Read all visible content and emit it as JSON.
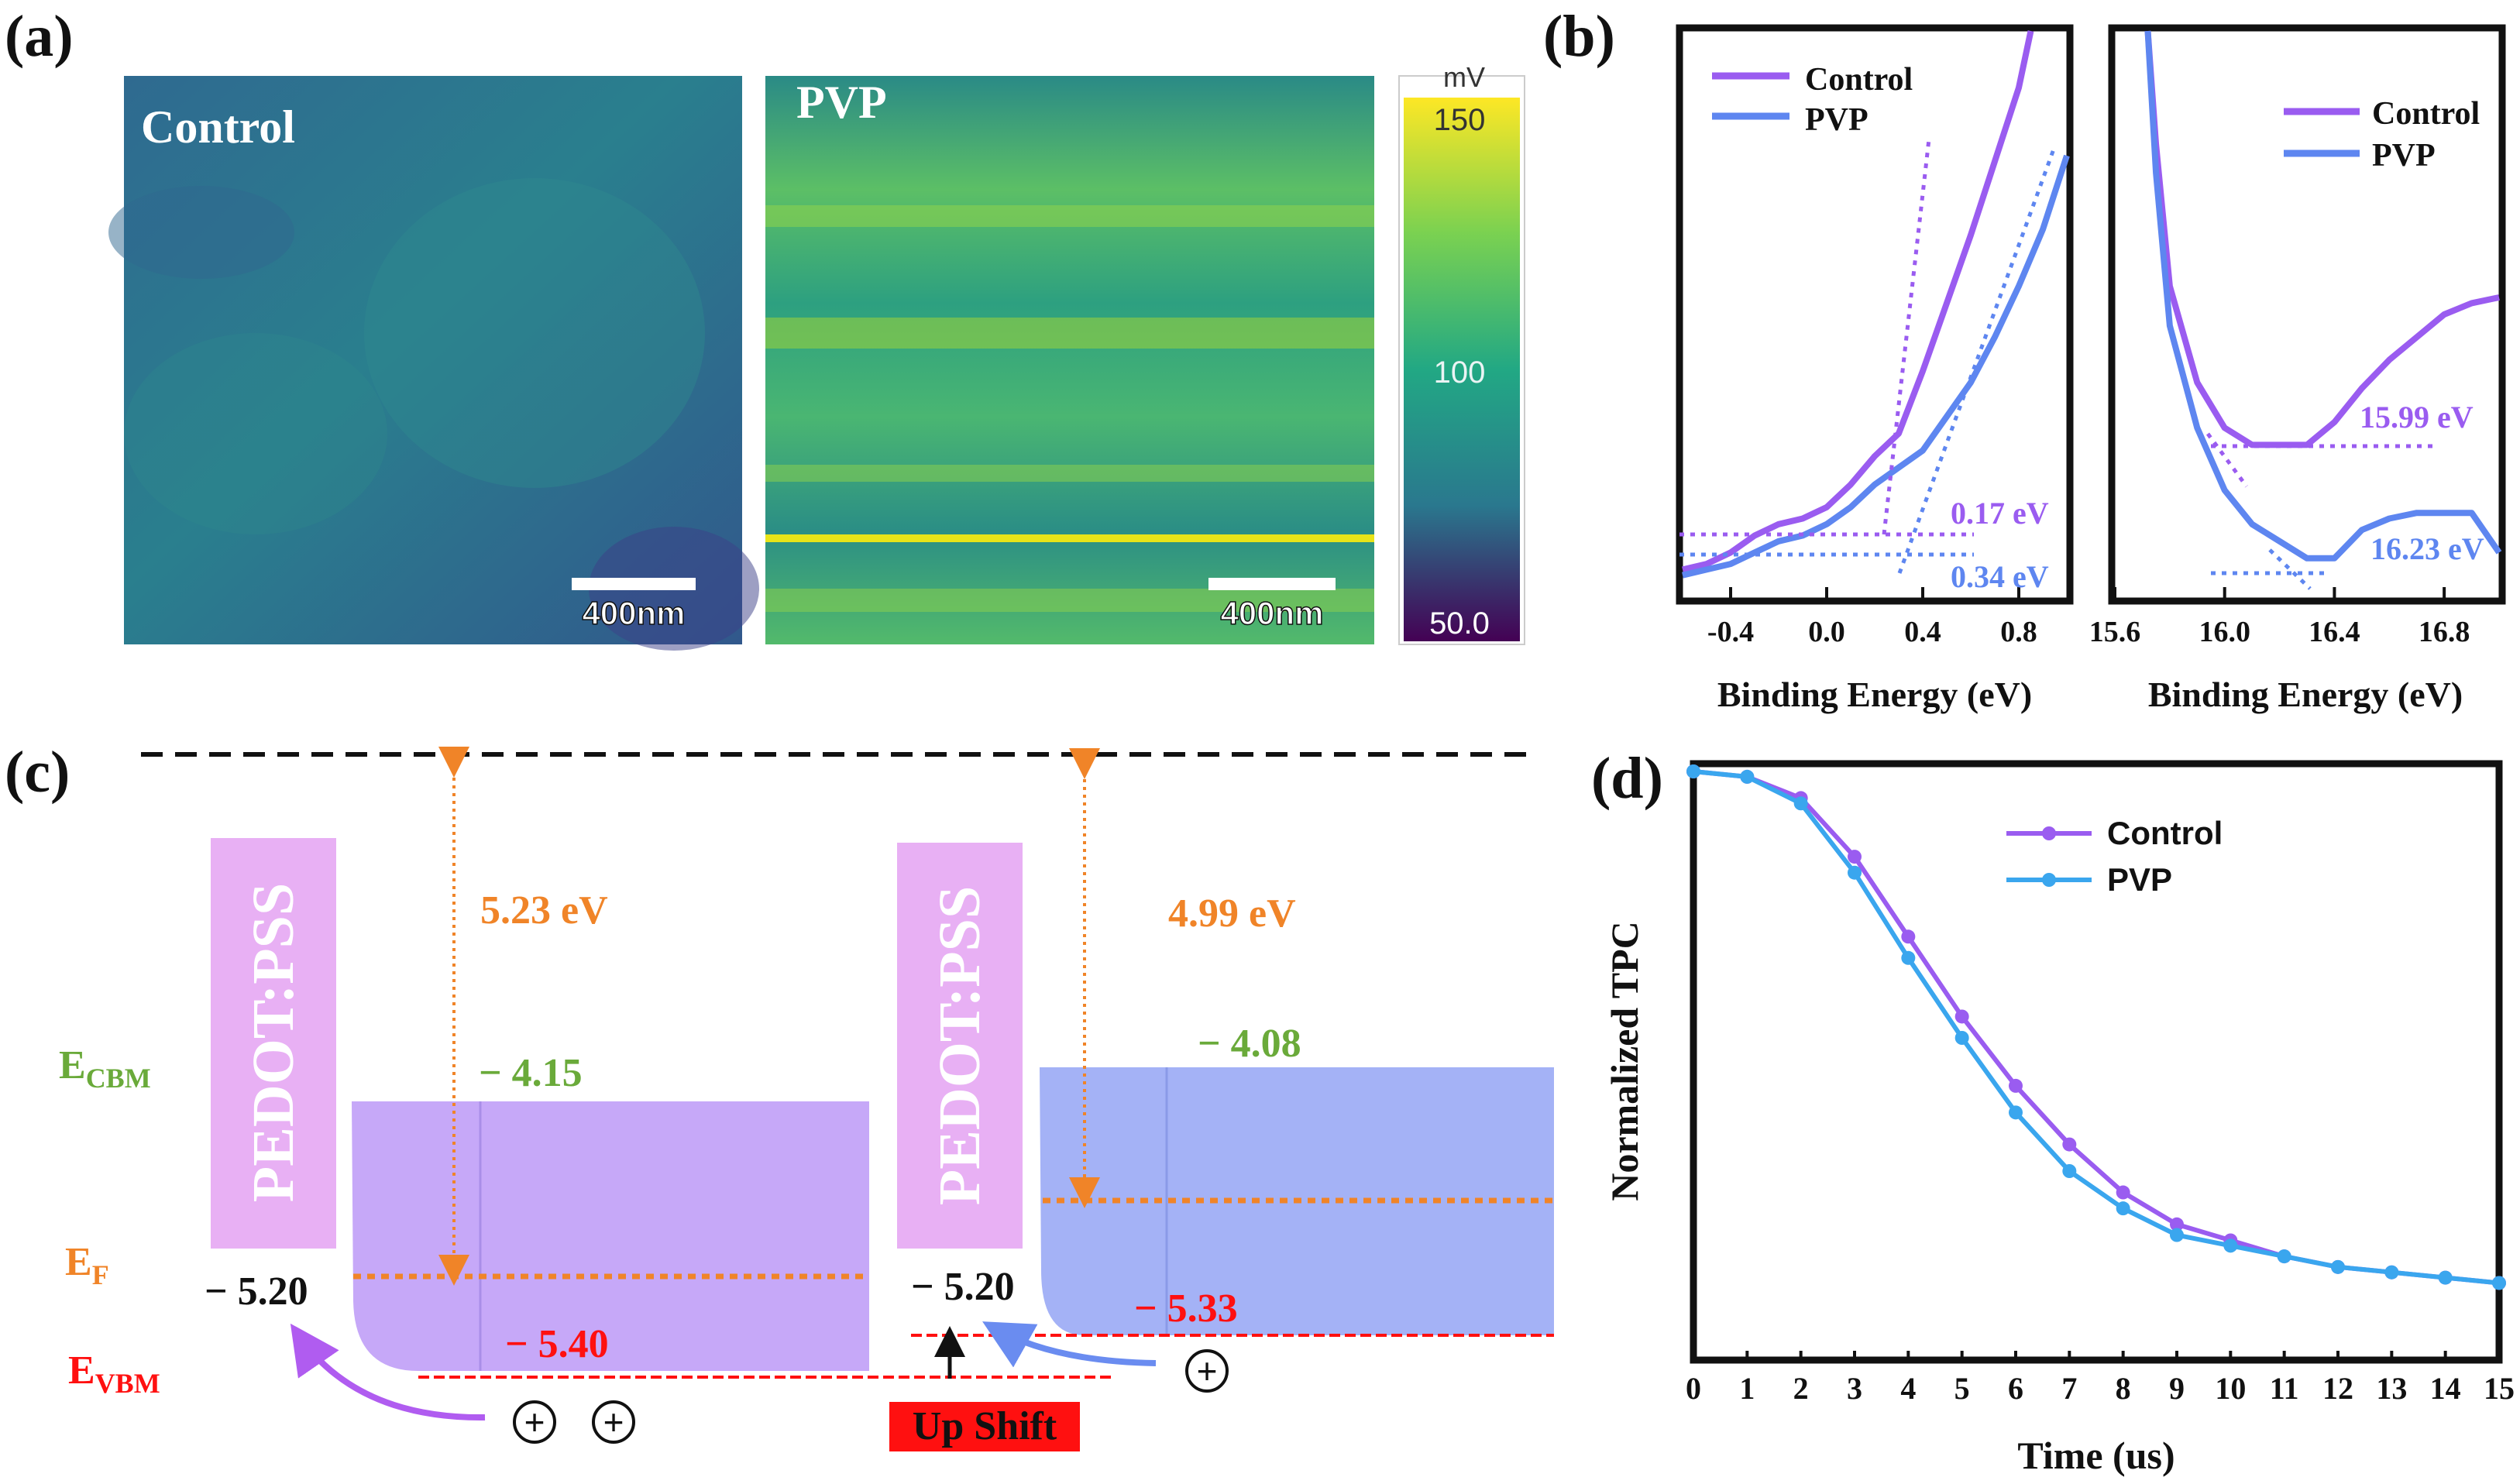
{
  "colors": {
    "control": "#9a5cf0",
    "pvp": "#5e86f0",
    "pvp_tpc": "#3aa6ee",
    "orange": "#f08428",
    "red": "#ff1010",
    "green": "#6aaa3a",
    "pedot_box": "#e8b0f4",
    "control_band": "#c6a8f8",
    "pvp_band": "#a4b2f6",
    "dark": "#111111"
  },
  "panel_a": {
    "label": "(a)",
    "image_control_title": "Control",
    "image_pvp_title": "PVP",
    "scalebar": "400nm",
    "colorbar_unit": "mV",
    "colorbar_ticks": [
      "150",
      "100",
      "50.0"
    ]
  },
  "panel_b": {
    "label": "(b)",
    "xlabel": "Binding Energy (eV)",
    "legend": [
      "Control",
      "PVP"
    ],
    "left_ticks": [
      "-0.4",
      "0.0",
      "0.4",
      "0.8"
    ],
    "right_ticks": [
      "15.6",
      "16.0",
      "16.4",
      "16.8"
    ],
    "left_annotations": [
      "0.17 eV",
      "0.34 eV"
    ],
    "right_annotations": [
      "15.99 eV",
      "16.23 eV"
    ]
  },
  "panel_c": {
    "label": "(c)",
    "pedot_label": "PEDOT:PSS",
    "work_function_control": "5.23 eV",
    "work_function_pvp": "4.99 eV",
    "ecbm_main": "E",
    "ecbm_sub": "CBM",
    "ef_main": "E",
    "ef_sub": "F",
    "evbm_main": "E",
    "evbm_sub": "VBM",
    "control_cbm": "− 4.15",
    "pvp_cbm": "− 4.08",
    "control_pedot": "− 5.20",
    "pvp_pedot": "− 5.20",
    "control_vbm": "− 5.40",
    "pvp_vbm": "− 5.33",
    "hole_symbol": "+",
    "upshift": "Up Shift"
  },
  "chart_data": [
    {
      "type": "line",
      "panel": "(b) left",
      "title": "",
      "xlabel": "Binding Energy (eV)",
      "ylabel": "",
      "xlim": [
        -0.6,
        1.0
      ],
      "ylim": [
        0,
        1
      ],
      "xticks": [
        -0.4,
        0.0,
        0.4,
        0.8
      ],
      "series": [
        {
          "name": "Control",
          "x": [
            -0.6,
            -0.5,
            -0.4,
            -0.3,
            -0.2,
            -0.1,
            0.0,
            0.1,
            0.2,
            0.3,
            0.4,
            0.5,
            0.6,
            0.7,
            0.8,
            0.85
          ],
          "y": [
            0.05,
            0.06,
            0.08,
            0.11,
            0.13,
            0.14,
            0.16,
            0.2,
            0.25,
            0.29,
            0.4,
            0.52,
            0.64,
            0.77,
            0.9,
            1.0
          ]
        },
        {
          "name": "PVP",
          "x": [
            -0.6,
            -0.5,
            -0.4,
            -0.3,
            -0.2,
            -0.1,
            0.0,
            0.1,
            0.2,
            0.3,
            0.4,
            0.5,
            0.6,
            0.7,
            0.8,
            0.9,
            1.0
          ],
          "y": [
            0.04,
            0.05,
            0.06,
            0.08,
            0.1,
            0.11,
            0.13,
            0.16,
            0.2,
            0.23,
            0.26,
            0.32,
            0.38,
            0.46,
            0.55,
            0.65,
            0.78
          ]
        }
      ],
      "onset_eV": {
        "Control": 0.17,
        "PVP": 0.34
      }
    },
    {
      "type": "line",
      "panel": "(b) right",
      "title": "",
      "xlabel": "Binding Energy (eV)",
      "ylabel": "",
      "xlim": [
        15.6,
        17.0
      ],
      "ylim": [
        0,
        1
      ],
      "xticks": [
        15.6,
        16.0,
        16.4,
        16.8
      ],
      "series": [
        {
          "name": "Control",
          "x": [
            15.72,
            15.75,
            15.8,
            15.9,
            16.0,
            16.1,
            16.2,
            16.3,
            16.4,
            16.5,
            16.6,
            16.7,
            16.8,
            16.9,
            17.0
          ],
          "y": [
            1.0,
            0.8,
            0.55,
            0.38,
            0.3,
            0.27,
            0.27,
            0.27,
            0.31,
            0.37,
            0.42,
            0.46,
            0.5,
            0.52,
            0.53
          ]
        },
        {
          "name": "PVP",
          "x": [
            15.72,
            15.75,
            15.8,
            15.9,
            16.0,
            16.1,
            16.2,
            16.3,
            16.4,
            16.5,
            16.6,
            16.7,
            16.8,
            16.9,
            17.0
          ],
          "y": [
            1.0,
            0.75,
            0.48,
            0.3,
            0.19,
            0.13,
            0.1,
            0.07,
            0.07,
            0.12,
            0.14,
            0.15,
            0.15,
            0.15,
            0.08
          ]
        }
      ],
      "cutoff_eV": {
        "Control": 15.99,
        "PVP": 16.23
      }
    },
    {
      "type": "line",
      "panel": "(d)",
      "title": "",
      "xlabel": "Time (us)",
      "ylabel": "Normalized TPC",
      "xlim": [
        0,
        15
      ],
      "ylim": [
        0,
        1.0
      ],
      "xticks": [
        0,
        1,
        2,
        3,
        4,
        5,
        6,
        7,
        8,
        9,
        10,
        11,
        12,
        13,
        14,
        15
      ],
      "x": [
        0,
        1,
        2,
        3,
        4,
        5,
        6,
        7,
        8,
        9,
        10,
        11,
        12,
        13,
        14,
        15
      ],
      "series": [
        {
          "name": "Control",
          "values": [
            1.0,
            0.99,
            0.95,
            0.84,
            0.69,
            0.54,
            0.41,
            0.3,
            0.21,
            0.15,
            0.12,
            0.09,
            0.07,
            0.06,
            0.05,
            0.04
          ]
        },
        {
          "name": "PVP",
          "values": [
            1.0,
            0.99,
            0.94,
            0.81,
            0.65,
            0.5,
            0.36,
            0.25,
            0.18,
            0.13,
            0.11,
            0.09,
            0.07,
            0.06,
            0.05,
            0.04
          ]
        }
      ]
    }
  ]
}
